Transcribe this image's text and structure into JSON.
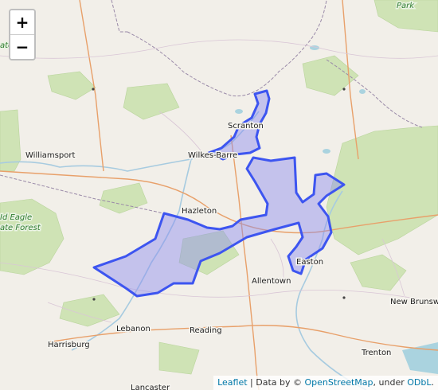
{
  "map": {
    "zoom_in_label": "+",
    "zoom_out_label": "−",
    "places": [
      {
        "name": "Scranton"
      },
      {
        "name": "Wilkes-Barre"
      },
      {
        "name": "Williamsport"
      },
      {
        "name": "Hazleton"
      },
      {
        "name": "Allentown"
      },
      {
        "name": "Easton"
      },
      {
        "name": "Lebanon"
      },
      {
        "name": "Reading"
      },
      {
        "name": "Harrisburg"
      },
      {
        "name": "Trenton"
      },
      {
        "name": "New Brunsw"
      },
      {
        "name": "Lancaster"
      }
    ],
    "park_labels": [
      "Park",
      "ate",
      "Id Eagle",
      "ate Forest"
    ],
    "attribution": {
      "leaflet": "Leaflet",
      "data_by": " | Data by © ",
      "osm": "OpenStreetMap",
      "under": ", under ",
      "odbl": "ODbL",
      "end": "."
    },
    "colors": {
      "region_fill": "#8c8cf0",
      "region_stroke": "#3d55f0",
      "land": "#f2efe9",
      "forest": "#cfe3b5",
      "state_border": "#9a8aa8"
    }
  }
}
